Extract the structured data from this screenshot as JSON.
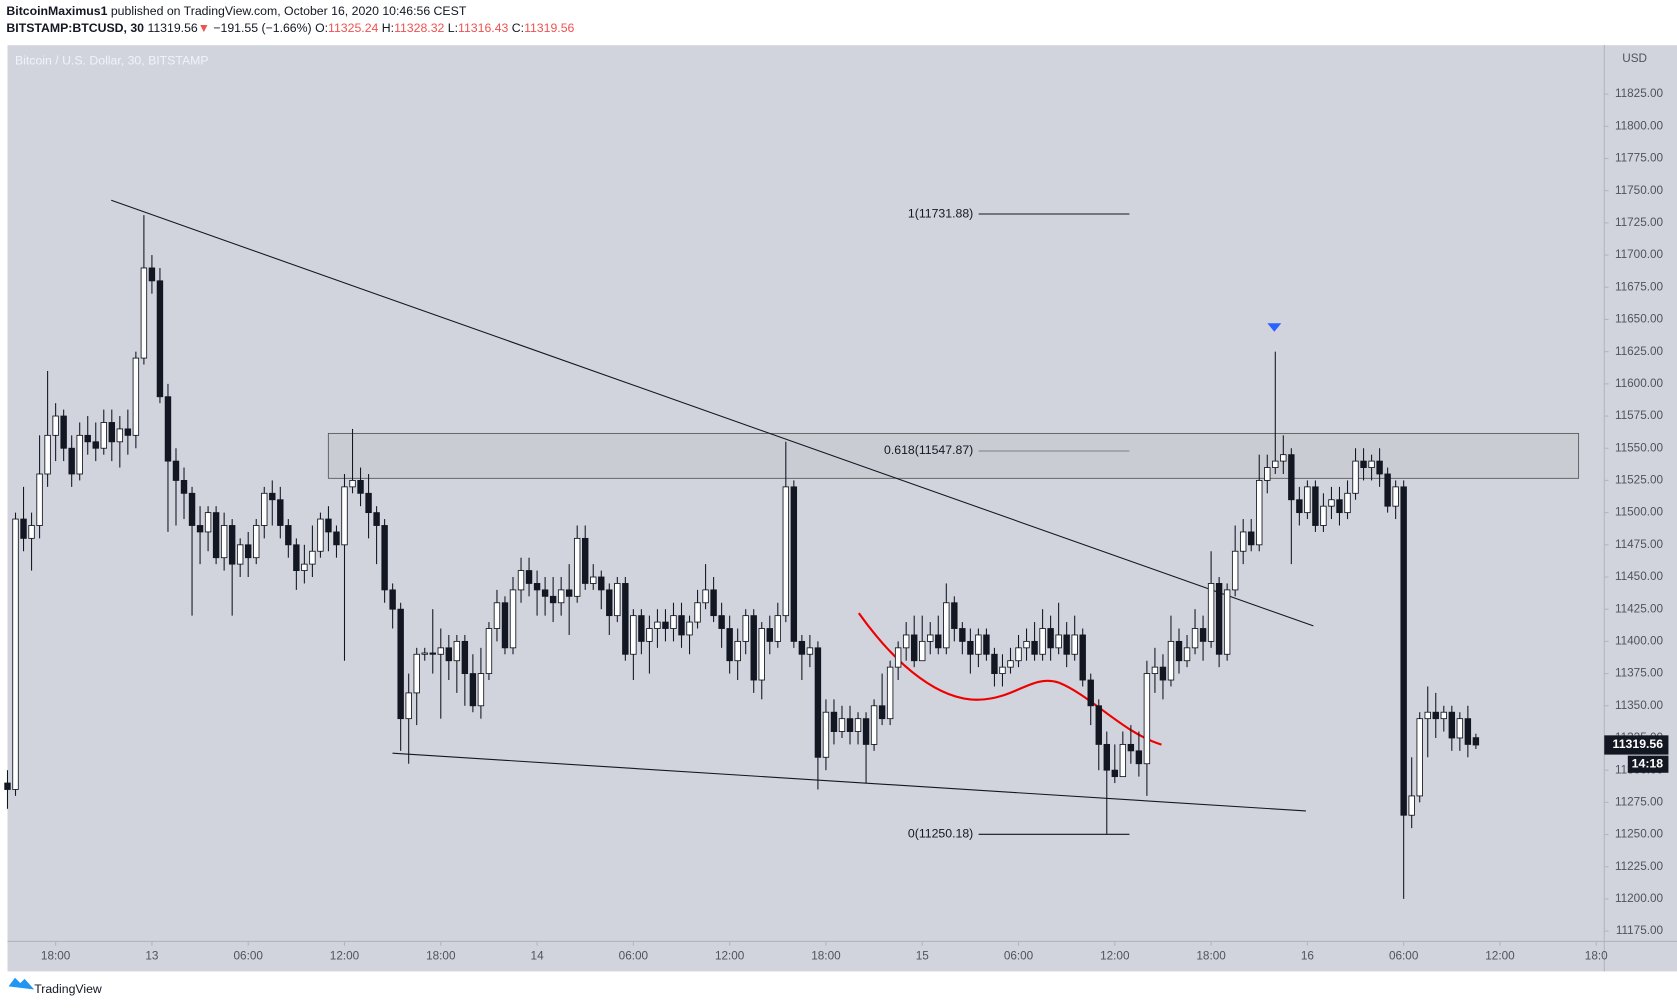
{
  "header": {
    "author": "BitcoinMaximus1",
    "published": "published on TradingView.com, October 16, 2020 10:46:56 CEST",
    "symbol": "BITSTAMP:BTCUSD, 30",
    "price": "11319.56",
    "arrow": "▼",
    "change": "−191.55 (−1.66%)",
    "o_label": "O:",
    "o": "11325.24",
    "h_label": "H:",
    "h": "11328.32",
    "l_label": "L:",
    "l": "11316.43",
    "c_label": "C:",
    "c": "11319.56"
  },
  "footer": {
    "brand": "TradingView"
  },
  "chart_data": {
    "type": "candlestick",
    "title": "Bitcoin / U.S. Dollar, 30, BITSTAMP",
    "y_unit": "USD",
    "up_color": "#ffffff",
    "down_color": "#131722",
    "candles": [
      [
        11290,
        11300,
        11270,
        11285
      ],
      [
        11285,
        11500,
        11280,
        11495
      ],
      [
        11495,
        11520,
        11470,
        11480
      ],
      [
        11480,
        11500,
        11455,
        11490
      ],
      [
        11490,
        11560,
        11480,
        11530
      ],
      [
        11530,
        11610,
        11520,
        11560
      ],
      [
        11560,
        11585,
        11540,
        11575
      ],
      [
        11575,
        11580,
        11540,
        11550
      ],
      [
        11550,
        11560,
        11520,
        11530
      ],
      [
        11530,
        11570,
        11525,
        11560
      ],
      [
        11560,
        11575,
        11545,
        11555
      ],
      [
        11555,
        11570,
        11540,
        11550
      ],
      [
        11550,
        11580,
        11545,
        11570
      ],
      [
        11570,
        11580,
        11540,
        11555
      ],
      [
        11555,
        11575,
        11535,
        11565
      ],
      [
        11565,
        11580,
        11545,
        11560
      ],
      [
        11560,
        11625,
        11550,
        11620
      ],
      [
        11620,
        11731,
        11615,
        11690
      ],
      [
        11690,
        11700,
        11670,
        11680
      ],
      [
        11680,
        11690,
        11585,
        11590
      ],
      [
        11590,
        11600,
        11485,
        11540
      ],
      [
        11540,
        11550,
        11490,
        11525
      ],
      [
        11525,
        11535,
        11495,
        11515
      ],
      [
        11515,
        11520,
        11420,
        11490
      ],
      [
        11490,
        11505,
        11460,
        11485
      ],
      [
        11485,
        11505,
        11470,
        11500
      ],
      [
        11500,
        11505,
        11460,
        11465
      ],
      [
        11465,
        11500,
        11455,
        11490
      ],
      [
        11490,
        11495,
        11420,
        11460
      ],
      [
        11460,
        11480,
        11450,
        11475
      ],
      [
        11475,
        11485,
        11450,
        11465
      ],
      [
        11465,
        11495,
        11460,
        11490
      ],
      [
        11490,
        11520,
        11480,
        11515
      ],
      [
        11515,
        11525,
        11490,
        11510
      ],
      [
        11510,
        11520,
        11480,
        11490
      ],
      [
        11490,
        11495,
        11465,
        11475
      ],
      [
        11475,
        11480,
        11440,
        11455
      ],
      [
        11455,
        11475,
        11445,
        11460
      ],
      [
        11460,
        11490,
        11450,
        11470
      ],
      [
        11470,
        11500,
        11465,
        11495
      ],
      [
        11495,
        11505,
        11470,
        11485
      ],
      [
        11485,
        11490,
        11465,
        11475
      ],
      [
        11475,
        11530,
        11385,
        11520
      ],
      [
        11520,
        11565,
        11515,
        11525
      ],
      [
        11525,
        11535,
        11505,
        11515
      ],
      [
        11515,
        11530,
        11480,
        11500
      ],
      [
        11500,
        11505,
        11460,
        11490
      ],
      [
        11490,
        11495,
        11430,
        11440
      ],
      [
        11440,
        11445,
        11410,
        11425
      ],
      [
        11425,
        11430,
        11315,
        11340
      ],
      [
        11340,
        11375,
        11305,
        11360
      ],
      [
        11360,
        11395,
        11335,
        11390
      ],
      [
        11390,
        11395,
        11385,
        11391
      ],
      [
        11391,
        11425,
        11375,
        11390
      ],
      [
        11390,
        11410,
        11340,
        11395
      ],
      [
        11395,
        11405,
        11370,
        11385
      ],
      [
        11385,
        11405,
        11360,
        11400
      ],
      [
        11400,
        11405,
        11350,
        11375
      ],
      [
        11375,
        11390,
        11345,
        11350
      ],
      [
        11350,
        11395,
        11340,
        11375
      ],
      [
        11375,
        11415,
        11370,
        11410
      ],
      [
        11410,
        11440,
        11400,
        11430
      ],
      [
        11430,
        11435,
        11390,
        11395
      ],
      [
        11395,
        11450,
        11390,
        11440
      ],
      [
        11440,
        11465,
        11430,
        11455
      ],
      [
        11455,
        11465,
        11435,
        11445
      ],
      [
        11445,
        11455,
        11420,
        11440
      ],
      [
        11440,
        11450,
        11420,
        11435
      ],
      [
        11435,
        11450,
        11415,
        11430
      ],
      [
        11430,
        11450,
        11420,
        11440
      ],
      [
        11440,
        11460,
        11405,
        11435
      ],
      [
        11435,
        11490,
        11430,
        11480
      ],
      [
        11480,
        11490,
        11440,
        11445
      ],
      [
        11445,
        11460,
        11440,
        11450
      ],
      [
        11450,
        11455,
        11425,
        11440
      ],
      [
        11440,
        11445,
        11405,
        11420
      ],
      [
        11420,
        11450,
        11415,
        11445
      ],
      [
        11445,
        11450,
        11385,
        11390
      ],
      [
        11390,
        11425,
        11370,
        11420
      ],
      [
        11420,
        11425,
        11390,
        11400
      ],
      [
        11400,
        11420,
        11375,
        11410
      ],
      [
        11410,
        11425,
        11395,
        11415
      ],
      [
        11415,
        11425,
        11400,
        11410
      ],
      [
        11410,
        11430,
        11400,
        11420
      ],
      [
        11420,
        11430,
        11395,
        11405
      ],
      [
        11405,
        11420,
        11390,
        11415
      ],
      [
        11415,
        11440,
        11410,
        11430
      ],
      [
        11430,
        11460,
        11425,
        11440
      ],
      [
        11440,
        11450,
        11415,
        11420
      ],
      [
        11420,
        11430,
        11395,
        11410
      ],
      [
        11410,
        11420,
        11375,
        11385
      ],
      [
        11385,
        11410,
        11370,
        11400
      ],
      [
        11400,
        11425,
        11390,
        11420
      ],
      [
        11420,
        11425,
        11360,
        11370
      ],
      [
        11370,
        11415,
        11355,
        11410
      ],
      [
        11410,
        11420,
        11390,
        11400
      ],
      [
        11400,
        11430,
        11395,
        11420
      ],
      [
        11420,
        11555,
        11415,
        11520
      ],
      [
        11520,
        11525,
        11395,
        11400
      ],
      [
        11400,
        11405,
        11370,
        11390
      ],
      [
        11390,
        11405,
        11380,
        11395
      ],
      [
        11395,
        11400,
        11285,
        11310
      ],
      [
        11310,
        11355,
        11300,
        11345
      ],
      [
        11345,
        11355,
        11320,
        11330
      ],
      [
        11330,
        11350,
        11325,
        11340
      ],
      [
        11340,
        11350,
        11320,
        11330
      ],
      [
        11330,
        11345,
        11320,
        11340
      ],
      [
        11340,
        11345,
        11290,
        11320
      ],
      [
        11320,
        11355,
        11315,
        11350
      ],
      [
        11350,
        11375,
        11335,
        11340
      ],
      [
        11340,
        11385,
        11335,
        11380
      ],
      [
        11380,
        11400,
        11370,
        11395
      ],
      [
        11395,
        11415,
        11385,
        11405
      ],
      [
        11405,
        11420,
        11380,
        11385
      ],
      [
        11385,
        11420,
        11385,
        11400
      ],
      [
        11400,
        11415,
        11390,
        11405
      ],
      [
        11405,
        11420,
        11390,
        11395
      ],
      [
        11395,
        11445,
        11390,
        11430
      ],
      [
        11430,
        11435,
        11400,
        11410
      ],
      [
        11410,
        11415,
        11390,
        11400
      ],
      [
        11400,
        11410,
        11375,
        11390
      ],
      [
        11390,
        11410,
        11380,
        11405
      ],
      [
        11405,
        11410,
        11385,
        11390
      ],
      [
        11390,
        11395,
        11365,
        11375
      ],
      [
        11375,
        11390,
        11365,
        11380
      ],
      [
        11380,
        11395,
        11375,
        11385
      ],
      [
        11385,
        11405,
        11380,
        11395
      ],
      [
        11395,
        11410,
        11385,
        11400
      ],
      [
        11400,
        11415,
        11385,
        11390
      ],
      [
        11390,
        11425,
        11385,
        11410
      ],
      [
        11410,
        11420,
        11385,
        11395
      ],
      [
        11395,
        11430,
        11390,
        11405
      ],
      [
        11405,
        11415,
        11380,
        11390
      ],
      [
        11390,
        11420,
        11385,
        11405
      ],
      [
        11405,
        11410,
        11365,
        11370
      ],
      [
        11370,
        11375,
        11335,
        11350
      ],
      [
        11350,
        11355,
        11300,
        11320
      ],
      [
        11320,
        11330,
        11250,
        11300
      ],
      [
        11300,
        11320,
        11290,
        11295
      ],
      [
        11295,
        11330,
        11295,
        11320
      ],
      [
        11320,
        11335,
        11305,
        11315
      ],
      [
        11315,
        11330,
        11295,
        11305
      ],
      [
        11305,
        11385,
        11280,
        11375
      ],
      [
        11375,
        11395,
        11360,
        11380
      ],
      [
        11380,
        11390,
        11355,
        11370
      ],
      [
        11370,
        11420,
        11365,
        11400
      ],
      [
        11400,
        11410,
        11375,
        11385
      ],
      [
        11385,
        11405,
        11380,
        11395
      ],
      [
        11395,
        11425,
        11390,
        11410
      ],
      [
        11410,
        11420,
        11385,
        11400
      ],
      [
        11400,
        11470,
        11395,
        11445
      ],
      [
        11445,
        11450,
        11380,
        11390
      ],
      [
        11390,
        11445,
        11385,
        11440
      ],
      [
        11440,
        11490,
        11435,
        11470
      ],
      [
        11470,
        11495,
        11460,
        11485
      ],
      [
        11485,
        11495,
        11470,
        11475
      ],
      [
        11475,
        11545,
        11470,
        11525
      ],
      [
        11525,
        11545,
        11515,
        11535
      ],
      [
        11535,
        11625,
        11530,
        11540
      ],
      [
        11540,
        11560,
        11530,
        11545
      ],
      [
        11545,
        11550,
        11460,
        11510
      ],
      [
        11510,
        11520,
        11490,
        11500
      ],
      [
        11500,
        11525,
        11495,
        11520
      ],
      [
        11520,
        11525,
        11485,
        11490
      ],
      [
        11490,
        11515,
        11485,
        11505
      ],
      [
        11505,
        11520,
        11495,
        11510
      ],
      [
        11510,
        11520,
        11490,
        11500
      ],
      [
        11500,
        11525,
        11495,
        11515
      ],
      [
        11515,
        11550,
        11510,
        11540
      ],
      [
        11540,
        11550,
        11525,
        11535
      ],
      [
        11535,
        11545,
        11525,
        11540
      ],
      [
        11540,
        11550,
        11520,
        11530
      ],
      [
        11530,
        11535,
        11500,
        11505
      ],
      [
        11505,
        11525,
        11495,
        11520
      ],
      [
        11520,
        11525,
        11200,
        11265
      ],
      [
        11265,
        11310,
        11255,
        11280
      ],
      [
        11280,
        11345,
        11275,
        11340
      ],
      [
        11340,
        11365,
        11310,
        11345
      ],
      [
        11345,
        11360,
        11325,
        11340
      ],
      [
        11340,
        11350,
        11330,
        11345
      ],
      [
        11345,
        11350,
        11315,
        11325
      ],
      [
        11325,
        11345,
        11315,
        11340
      ],
      [
        11340,
        11350,
        11310,
        11320
      ],
      [
        11325.24,
        11328.32,
        11316.43,
        11319.56
      ]
    ],
    "xlim": [
      0,
      199
    ],
    "xticks": [
      {
        "value": 6,
        "label": "18:00"
      },
      {
        "value": 18,
        "label": "13"
      },
      {
        "value": 30,
        "label": "06:00"
      },
      {
        "value": 42,
        "label": "12:00"
      },
      {
        "value": 54,
        "label": "18:00"
      },
      {
        "value": 66,
        "label": "14"
      },
      {
        "value": 78,
        "label": "06:00"
      },
      {
        "value": 90,
        "label": "12:00"
      },
      {
        "value": 102,
        "label": "18:00"
      },
      {
        "value": 114,
        "label": "15"
      },
      {
        "value": 126,
        "label": "06:00"
      },
      {
        "value": 138,
        "label": "12:00"
      },
      {
        "value": 150,
        "label": "18:00"
      },
      {
        "value": 162,
        "label": "16"
      },
      {
        "value": 174,
        "label": "06:00"
      },
      {
        "value": 186,
        "label": "12:00"
      },
      {
        "value": 198,
        "label": "18:0"
      }
    ],
    "ylim": [
      11167,
      11863
    ],
    "yticks": [
      {
        "value": 11175,
        "label": "11175.00"
      },
      {
        "value": 11200,
        "label": "11200.00"
      },
      {
        "value": 11225,
        "label": "11225.00"
      },
      {
        "value": 11250,
        "label": "11250.00"
      },
      {
        "value": 11275,
        "label": "11275.00"
      },
      {
        "value": 11300,
        "label": "11300.00"
      },
      {
        "value": 11325,
        "label": "11325.00"
      },
      {
        "value": 11350,
        "label": "11350.00"
      },
      {
        "value": 11375,
        "label": "11375.00"
      },
      {
        "value": 11400,
        "label": "11400.00"
      },
      {
        "value": 11425,
        "label": "11425.00"
      },
      {
        "value": 11450,
        "label": "11450.00"
      },
      {
        "value": 11475,
        "label": "11475.00"
      },
      {
        "value": 11500,
        "label": "11500.00"
      },
      {
        "value": 11525,
        "label": "11525.00"
      },
      {
        "value": 11550,
        "label": "11550.00"
      },
      {
        "value": 11575,
        "label": "11575.00"
      },
      {
        "value": 11600,
        "label": "11600.00"
      },
      {
        "value": 11625,
        "label": "11625.00"
      },
      {
        "value": 11650,
        "label": "11650.00"
      },
      {
        "value": 11675,
        "label": "11675.00"
      },
      {
        "value": 11700,
        "label": "11700.00"
      },
      {
        "value": 11725,
        "label": "11725.00"
      },
      {
        "value": 11750,
        "label": "11750.00"
      },
      {
        "value": 11775,
        "label": "11775.00"
      },
      {
        "value": 11800,
        "label": "11800.00"
      },
      {
        "value": 11825,
        "label": "11825.00"
      }
    ],
    "last_price": 11319.56,
    "countdown": "14:18",
    "fib_levels": [
      {
        "value": 11731.88,
        "label": "1(11731.88)"
      },
      {
        "value": 11547.87,
        "label": "0.618(11547.87)"
      },
      {
        "value": 11250.18,
        "label": "0(11250.18)"
      }
    ]
  }
}
